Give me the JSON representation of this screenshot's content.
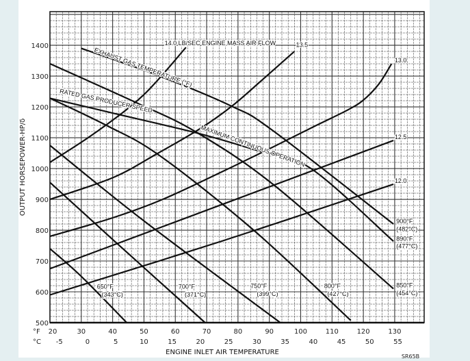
{
  "chart_data": {
    "type": "line",
    "title": "",
    "xlabel": "ENGINE INLET AIR TEMPERATURE",
    "ylabel": "OUTPUT HORSEPOWER-HP/δ",
    "xlim": [
      20,
      139.4
    ],
    "ylim": [
      500,
      1509
    ],
    "grid": true,
    "x_unit_label_f": "°F",
    "x_unit_label_c": "°C",
    "x_ticks_f": [
      20,
      30,
      40,
      50,
      60,
      70,
      80,
      90,
      100,
      110,
      120,
      130
    ],
    "x_ticks_c": [
      -5,
      0,
      5,
      10,
      15,
      20,
      25,
      30,
      35,
      40,
      45,
      50,
      55
    ],
    "y_ticks": [
      500,
      600,
      700,
      800,
      900,
      1000,
      1100,
      1200,
      1300,
      1400
    ],
    "figure_id": "SR65B",
    "series": [
      {
        "name": "14.0 LB/SEC ENGINE MASS AIR FLOW",
        "group": "airflow",
        "points": [
          [
            20,
            1020
          ],
          [
            35,
            1120
          ],
          [
            50,
            1240
          ],
          [
            63.4,
            1393
          ]
        ]
      },
      {
        "name": "13.5",
        "group": "airflow",
        "points": [
          [
            20,
            900
          ],
          [
            40,
            970
          ],
          [
            54,
            1047
          ],
          [
            68,
            1130
          ],
          [
            78,
            1202
          ],
          [
            88,
            1290
          ],
          [
            98,
            1380
          ]
        ]
      },
      {
        "name": "13.0",
        "group": "airflow",
        "points": [
          [
            20,
            780
          ],
          [
            40,
            840
          ],
          [
            56,
            900
          ],
          [
            75,
            990
          ],
          [
            91,
            1069
          ],
          [
            105,
            1140
          ],
          [
            115,
            1190
          ],
          [
            120,
            1222
          ],
          [
            125,
            1275
          ],
          [
            129,
            1340
          ]
        ]
      },
      {
        "name": "12.5",
        "group": "airflow",
        "points": [
          [
            20,
            675
          ],
          [
            129.6,
            1091
          ]
        ]
      },
      {
        "name": "12.0",
        "group": "airflow",
        "points": [
          [
            20,
            590
          ],
          [
            75,
            765
          ],
          [
            129.6,
            949
          ]
        ]
      },
      {
        "name": "650°F (343°C)",
        "group": "temp",
        "points": [
          [
            20,
            740
          ],
          [
            30,
            650
          ],
          [
            44.5,
            500
          ]
        ]
      },
      {
        "name": "700°F (371°C)",
        "group": "temp",
        "points": [
          [
            20,
            955
          ],
          [
            40,
            770
          ],
          [
            69.5,
            500
          ]
        ]
      },
      {
        "name": "750°F (399°C)",
        "group": "temp",
        "points": [
          [
            20,
            1075
          ],
          [
            50,
            830
          ],
          [
            93.5,
            500
          ]
        ]
      },
      {
        "name": "800°F (427°C)",
        "group": "temp",
        "points": [
          [
            20,
            1228
          ],
          [
            38,
            1140
          ],
          [
            55,
            1042
          ],
          [
            85,
            800
          ],
          [
            116,
            507
          ]
        ]
      },
      {
        "name": "850°F (454°C)",
        "group": "temp",
        "points": [
          [
            20,
            1340
          ],
          [
            47.7,
            1213
          ],
          [
            66.7,
            1118
          ],
          [
            91.4,
            947
          ],
          [
            129.6,
            610
          ]
        ]
      },
      {
        "name": "900°F (482°C) / EXHAUST GAS TEMPERATURE (°F)",
        "group": "temp",
        "points": [
          [
            30,
            1390
          ],
          [
            55,
            1300
          ],
          [
            78,
            1202
          ],
          [
            91,
            1124
          ],
          [
            129.6,
            820
          ]
        ]
      },
      {
        "name": "890°F (477°C) / RATED GAS PRODUCER SPEED / MAXIMUM CONTINUOUS OPERATION",
        "group": "limit",
        "points": [
          [
            20,
            1228
          ],
          [
            40,
            1180
          ],
          [
            67,
            1115
          ],
          [
            85,
            1062
          ],
          [
            103,
            1002
          ],
          [
            129.6,
            764
          ]
        ]
      }
    ],
    "annotations": [
      {
        "text": "14.0 LB/SEC ENGINE MASS AIR FLOW",
        "x": 64,
        "y": 1400
      },
      {
        "text": "13.5",
        "x": 98.5,
        "y": 1395
      },
      {
        "text": "13.0",
        "x": 130,
        "y": 1345
      },
      {
        "text": "12.5",
        "x": 130,
        "y": 1096
      },
      {
        "text": "12.0",
        "x": 130,
        "y": 953
      },
      {
        "text": "EXHAUST GAS TEMPERATURE (°F)",
        "x": 34,
        "y": 1375
      },
      {
        "text": "RATED GAS PRODUCER SPEED",
        "x": 23,
        "y": 1252
      },
      {
        "text": "MAXIMUM CONTINUOUS OPERATION",
        "x": 68,
        "y": 1128
      },
      {
        "text": "650°F",
        "x": 35,
        "y": 610
      },
      {
        "text": "(343°C)",
        "x": 36.5,
        "y": 585
      },
      {
        "text": "700°F",
        "x": 61,
        "y": 610
      },
      {
        "text": "(371°C)",
        "x": 63,
        "y": 585
      },
      {
        "text": "750°F",
        "x": 84,
        "y": 612
      },
      {
        "text": "(399°C)",
        "x": 86,
        "y": 587
      },
      {
        "text": "800°F",
        "x": 107.5,
        "y": 612
      },
      {
        "text": "(427°C)",
        "x": 108.5,
        "y": 587
      },
      {
        "text": "850°F",
        "x": 130.5,
        "y": 614
      },
      {
        "text": "(454°C)",
        "x": 130.5,
        "y": 589
      },
      {
        "text": "900°F",
        "x": 130.5,
        "y": 822
      },
      {
        "text": "(482°C)",
        "x": 130.5,
        "y": 797
      },
      {
        "text": "890°F",
        "x": 130.5,
        "y": 766
      },
      {
        "text": "(477°C)",
        "x": 130.5,
        "y": 741
      }
    ]
  },
  "colors": {
    "background": "#e4eff1",
    "panel": "#ffffff",
    "ink": "#111111",
    "grid": "#444444"
  }
}
